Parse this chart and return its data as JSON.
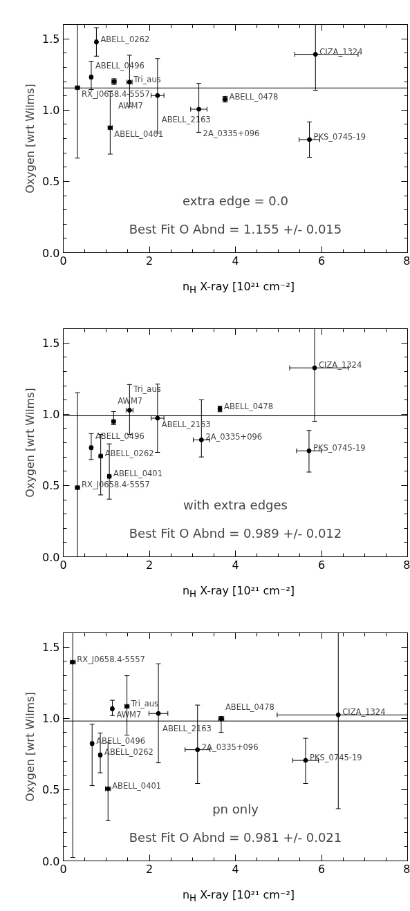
{
  "chart_data": [
    {
      "type": "scatter",
      "xlabel": "n$_{H}$ X-ray [10²¹ cm⁻²]",
      "ylabel": "Oxygen [wrt Wilms]",
      "marker": "circle",
      "grid": false,
      "xlim": [
        0,
        8
      ],
      "ylim": [
        0,
        1.6
      ],
      "xticks": [
        0,
        2,
        4,
        6,
        8
      ],
      "yticks": [
        {
          "value": 0,
          "label": "0.0"
        },
        {
          "value": 0.5,
          "label": "0.5"
        },
        {
          "value": 1,
          "label": "1.0"
        },
        {
          "value": 1.5,
          "label": "1.5"
        }
      ],
      "x": [
        0.33,
        0.77,
        0.65,
        1.18,
        1.54,
        2.19,
        3.76,
        3.15,
        1.09,
        5.86,
        5.72
      ],
      "series": [
        {
          "color": "#000000",
          "values": [
            1.157,
            1.478,
            1.231,
            1.2,
            1.196,
            1.102,
            1.076,
            1.006,
            0.876,
            1.391,
            0.793
          ],
          "errors": [
            [
              0.663,
              1.6
            ],
            0.1,
            [
              1.144,
              1.343
            ],
            0.02,
            [
              1.024,
              1.385
            ],
            [
              0.839,
              1.361
            ],
            0.02,
            [
              0.844,
              1.187
            ],
            [
              0.691,
              1.131
            ],
            [
              1.139,
              1.6
            ],
            0.124
          ],
          "xerrors": [
            0.05,
            0.03,
            0.03,
            0.05,
            0.06,
            0.15,
            0.05,
            0.19,
            0.05,
            [
              5.38,
              6.85
            ],
            0.24
          ]
        }
      ],
      "ref_lines": [
        {
          "axis": "y",
          "value": 1.155
        }
      ],
      "annotations": [
        {
          "text": "RX_J0658.4-5557",
          "x": 0.33,
          "y": 1.157
        },
        {
          "text": "ABELL_0262",
          "x": 0.77,
          "y": 1.478
        },
        {
          "text": "ABELL_0496",
          "x": 0.65,
          "y": 1.231
        },
        {
          "text": "AWM7",
          "x": 1.18,
          "y": 1.2
        },
        {
          "text": "Tri_aus",
          "x": 1.54,
          "y": 1.196
        },
        {
          "text": "ABELL_2163",
          "x": 2.19,
          "y": 1.102
        },
        {
          "text": "ABELL_0478",
          "x": 3.76,
          "y": 1.076
        },
        {
          "text": "2A_0335+096",
          "x": 3.15,
          "y": 1.006
        },
        {
          "text": "ABELL_0401",
          "x": 1.09,
          "y": 0.876
        },
        {
          "text": "CIZA_1324",
          "x": 5.86,
          "y": 1.391
        },
        {
          "text": "PKS_0745-19",
          "x": 5.72,
          "y": 0.793
        },
        "extra edge = 0.0",
        "Best Fit O Abnd = 1.155 +/- 0.015"
      ]
    },
    {
      "type": "scatter",
      "xlabel": "n$_{H}$ X-ray [10²¹ cm⁻²]",
      "ylabel": "Oxygen [wrt Wilms]",
      "marker": "circle",
      "grid": false,
      "xlim": [
        0,
        8
      ],
      "ylim": [
        0,
        1.6
      ],
      "xticks": [
        0,
        2,
        4,
        6,
        8
      ],
      "yticks": [
        {
          "value": 0,
          "label": "0.0"
        },
        {
          "value": 0.5,
          "label": "0.5"
        },
        {
          "value": 1,
          "label": "1.0"
        },
        {
          "value": 1.5,
          "label": "1.5"
        }
      ],
      "x": [
        0.33,
        0.87,
        0.65,
        1.17,
        1.54,
        2.19,
        3.64,
        3.21,
        1.07,
        5.84,
        5.71
      ],
      "series": [
        {
          "color": "#000000",
          "values": [
            0.485,
            0.706,
            0.765,
            0.949,
            1.028,
            0.972,
            1.037,
            0.82,
            0.564,
            1.325,
            0.743
          ],
          "errors": [
            [
              0,
              1.151
            ],
            [
              0.434,
              0.858
            ],
            [
              0.682,
              0.864
            ],
            [
              0.926,
              1.018
            ],
            [
              0.858,
              1.208
            ],
            [
              0.732,
              1.211
            ],
            0.02,
            [
              0.7,
              1.101
            ],
            [
              0.404,
              0.792
            ],
            [
              0.95,
              1.6
            ],
            [
              0.594,
              0.886
            ]
          ],
          "xerrors": [
            0.05,
            0.04,
            0.03,
            0.04,
            0.08,
            0.15,
            0.04,
            0.19,
            0.04,
            [
              5.26,
              6.62
            ],
            0.29
          ]
        }
      ],
      "ref_lines": [
        {
          "axis": "y",
          "value": 0.989
        }
      ],
      "annotations": [
        {
          "text": "RX_J0658.4-5557",
          "x": 0.33,
          "y": 0.485
        },
        {
          "text": "ABELL_0262",
          "x": 0.87,
          "y": 0.706
        },
        {
          "text": "ABELL_0496",
          "x": 0.65,
          "y": 0.765
        },
        {
          "text": "AWM7",
          "x": 1.17,
          "y": 0.949
        },
        {
          "text": "Tri_aus",
          "x": 1.54,
          "y": 1.028
        },
        {
          "text": "ABELL_2163",
          "x": 2.19,
          "y": 0.972
        },
        {
          "text": "ABELL_0478",
          "x": 3.64,
          "y": 1.037
        },
        {
          "text": "2A_0335+096",
          "x": 3.21,
          "y": 0.82
        },
        {
          "text": "ABELL_0401",
          "x": 1.07,
          "y": 0.564
        },
        {
          "text": "CIZA_1324",
          "x": 5.84,
          "y": 1.325
        },
        {
          "text": "PKS_0745-19",
          "x": 5.71,
          "y": 0.743
        },
        "with extra edges",
        "Best Fit O Abnd = 0.989 +/- 0.012"
      ]
    },
    {
      "type": "scatter",
      "xlabel": "n$_{H}$ X-ray [10²¹ cm⁻²]",
      "ylabel": "Oxygen [wrt Wilms]",
      "marker": "circle",
      "grid": false,
      "xlim": [
        0,
        8
      ],
      "ylim": [
        0,
        1.6
      ],
      "xticks": [
        0,
        2,
        4,
        6,
        8
      ],
      "yticks": [
        {
          "value": 0,
          "label": "0.0"
        },
        {
          "value": 0.5,
          "label": "0.5"
        },
        {
          "value": 1,
          "label": "1.0"
        },
        {
          "value": 1.5,
          "label": "1.5"
        }
      ],
      "x": [
        0.22,
        0.86,
        0.67,
        1.14,
        1.48,
        2.21,
        3.67,
        3.12,
        1.04,
        6.39,
        5.63
      ],
      "series": [
        {
          "color": "#000000",
          "values": [
            1.394,
            0.743,
            0.823,
            1.067,
            1.084,
            1.034,
            0.996,
            0.78,
            0.506,
            1.024,
            0.705
          ],
          "errors": [
            [
              0.024,
              1.6
            ],
            [
              0.618,
              0.897
            ],
            [
              0.528,
              0.959
            ],
            [
              1.019,
              1.127
            ],
            [
              0.882,
              1.299
            ],
            [
              0.688,
              1.382
            ],
            [
              0.901,
              1.013
            ],
            [
              0.543,
              1.093
            ],
            [
              0.282,
              0.832
            ],
            [
              0.366,
              1.6
            ],
            [
              0.543,
              0.86
            ]
          ],
          "xerrors": [
            0.06,
            0.03,
            0.03,
            0.03,
            0.05,
            0.22,
            0.06,
            0.29,
            0.06,
            [
              4.97,
              8
            ],
            0.3
          ]
        }
      ],
      "ref_lines": [
        {
          "axis": "y",
          "value": 0.981
        }
      ],
      "annotations": [
        {
          "text": "RX_J0658.4-5557",
          "x": 0.22,
          "y": 1.394
        },
        {
          "text": "ABELL_0262",
          "x": 0.86,
          "y": 0.743
        },
        {
          "text": "ABELL_0496",
          "x": 0.67,
          "y": 0.823
        },
        {
          "text": "AWM7",
          "x": 1.14,
          "y": 1.067
        },
        {
          "text": "Tri_aus",
          "x": 1.48,
          "y": 1.084
        },
        {
          "text": "ABELL_2163",
          "x": 2.21,
          "y": 1.034
        },
        {
          "text": "ABELL_0478",
          "x": 3.67,
          "y": 0.996
        },
        {
          "text": "2A_0335+096",
          "x": 3.12,
          "y": 0.78
        },
        {
          "text": "ABELL_0401",
          "x": 1.04,
          "y": 0.506
        },
        {
          "text": "CIZA_1324",
          "x": 6.39,
          "y": 1.024
        },
        {
          "text": "PKS_0745-19",
          "x": 5.63,
          "y": 0.705
        },
        "pn only",
        "Best Fit O Abnd = 0.981 +/- 0.021"
      ]
    }
  ]
}
